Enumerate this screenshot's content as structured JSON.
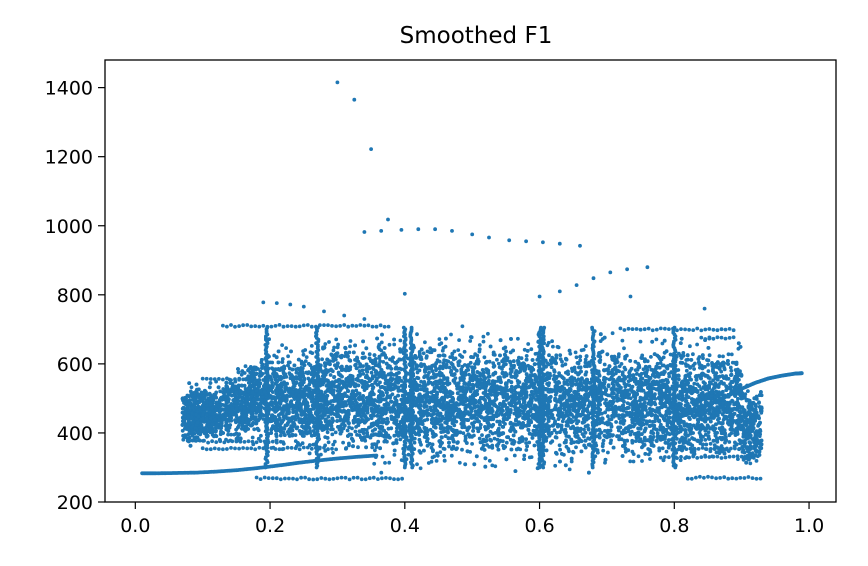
{
  "chart_data": {
    "type": "scatter",
    "title": "Smoothed F1",
    "xlabel": "",
    "ylabel": "",
    "xlim": [
      -0.045,
      1.04
    ],
    "ylim": [
      200,
      1480
    ],
    "xticks": [
      0.0,
      0.2,
      0.4,
      0.6,
      0.8,
      1.0
    ],
    "xtick_labels": [
      "0.0",
      "0.2",
      "0.4",
      "0.6",
      "0.8",
      "1.0"
    ],
    "yticks": [
      200,
      400,
      600,
      800,
      1000,
      1200,
      1400
    ],
    "ytick_labels": [
      "200",
      "400",
      "600",
      "800",
      "1000",
      "1200",
      "1400"
    ],
    "color": "#1f77b4",
    "grid": false,
    "series": [
      {
        "points": [
          [
            0.3,
            1415
          ],
          [
            0.325,
            1365
          ],
          [
            0.35,
            1222
          ],
          [
            0.34,
            982
          ],
          [
            0.365,
            985
          ],
          [
            0.375,
            1018
          ],
          [
            0.395,
            988
          ],
          [
            0.42,
            990
          ],
          [
            0.445,
            990
          ],
          [
            0.47,
            985
          ],
          [
            0.5,
            975
          ],
          [
            0.525,
            966
          ],
          [
            0.555,
            958
          ],
          [
            0.58,
            955
          ],
          [
            0.605,
            952
          ],
          [
            0.63,
            948
          ],
          [
            0.66,
            942
          ],
          [
            0.6,
            795
          ],
          [
            0.63,
            810
          ],
          [
            0.655,
            828
          ],
          [
            0.68,
            848
          ],
          [
            0.705,
            865
          ],
          [
            0.73,
            874
          ],
          [
            0.76,
            880
          ],
          [
            0.4,
            803
          ],
          [
            0.735,
            795
          ],
          [
            0.845,
            760
          ],
          [
            0.19,
            778
          ],
          [
            0.21,
            776
          ],
          [
            0.23,
            772
          ],
          [
            0.25,
            766
          ],
          [
            0.28,
            752
          ],
          [
            0.31,
            740
          ],
          [
            0.34,
            730
          ]
        ]
      },
      {
        "lower_curve_x": [
          0.01,
          0.03,
          0.06,
          0.09,
          0.12,
          0.15,
          0.18,
          0.21,
          0.24,
          0.27,
          0.3,
          0.33,
          0.36
        ],
        "lower_curve_y": [
          283,
          283,
          284,
          285,
          288,
          292,
          298,
          305,
          313,
          320,
          326,
          331,
          335
        ],
        "upper_curve_x": [
          0.8,
          0.83,
          0.86,
          0.88,
          0.9,
          0.92,
          0.94,
          0.96,
          0.98,
          0.99
        ],
        "upper_curve_y": [
          440,
          462,
          490,
          508,
          528,
          545,
          558,
          566,
          572,
          573
        ],
        "bulk_x_range": [
          0.07,
          0.93
        ],
        "bulk_y_range": [
          260,
          720
        ]
      }
    ]
  }
}
